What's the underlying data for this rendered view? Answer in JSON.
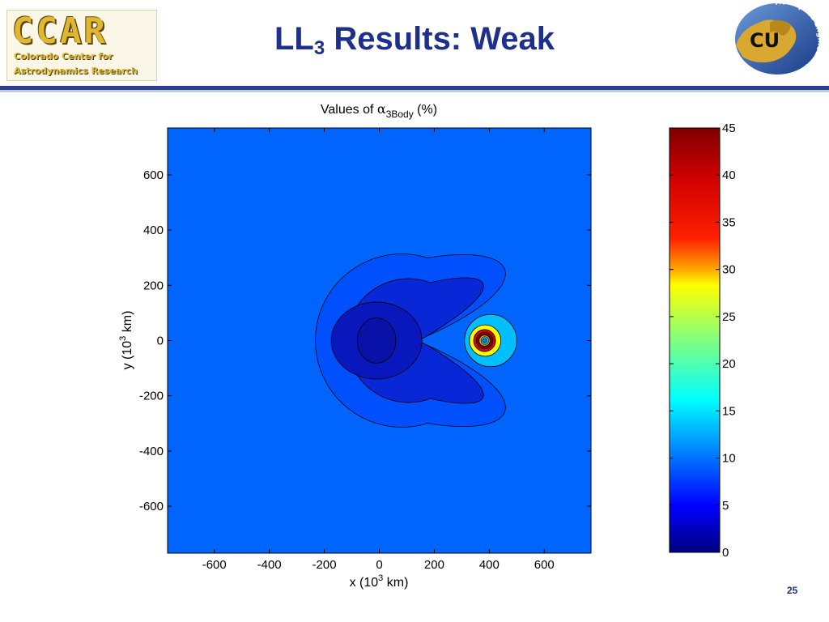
{
  "header": {
    "title_main": "LL",
    "title_sub": "3",
    "title_rest": " Results: Weak",
    "logo_left": {
      "acronym": "CCAR",
      "line1": "Colorado Center for",
      "line2": "Astrodynamics Research"
    },
    "logo_right": {
      "emblem": "CU",
      "arc_text": "Aerospace Engineering"
    }
  },
  "page_number": "25",
  "chart_data": {
    "type": "heatmap",
    "subtype": "filled-contour",
    "title_prefix": "Values of ",
    "title_symbol": "α",
    "title_subscript": "3Body",
    "title_suffix": " (%)",
    "xlabel_prefix": "x (10",
    "xlabel_sup": "3",
    "xlabel_suffix": " km)",
    "ylabel_prefix": "y (10",
    "ylabel_sup": "3",
    "ylabel_suffix": " km)",
    "xlim": [
      -770,
      770
    ],
    "ylim": [
      -770,
      770
    ],
    "xticks": [
      -600,
      -400,
      -200,
      0,
      200,
      400,
      600
    ],
    "yticks": [
      600,
      400,
      200,
      0,
      -200,
      -400,
      -600
    ],
    "colorbar": {
      "min": 0,
      "max": 45,
      "ticks": [
        45,
        40,
        35,
        30,
        25,
        20,
        15,
        10,
        5,
        0
      ]
    },
    "contours": [
      {
        "kind": "moon-lobe",
        "value": 5,
        "color": "#0050ff",
        "r": 315,
        "pinch_x": 175,
        "pinch_y": 300,
        "right_x": 560
      },
      {
        "kind": "moon-lobe",
        "value": 2,
        "color": "#0828d8",
        "r": 225,
        "pinch_x": 185,
        "pinch_y": 210,
        "right_x": 450
      },
      {
        "kind": "ellipse",
        "value": 1,
        "color": "#0818bc",
        "cx": -10,
        "cy": 0,
        "rx": 165,
        "ry": 140
      },
      {
        "kind": "ellipse",
        "value": 0.5,
        "color": "#0812a8",
        "cx": -10,
        "cy": 0,
        "rx": 70,
        "ry": 82
      },
      {
        "kind": "ellipse",
        "value": 9,
        "color": "#00bfff",
        "cx": 405,
        "cy": 0,
        "rx": 95,
        "ry": 95
      },
      {
        "kind": "ellipse",
        "value": 18,
        "color": "#ffff00",
        "cx": 385,
        "cy": 0,
        "rx": 57,
        "ry": 57
      },
      {
        "kind": "ellipse",
        "value": 33,
        "color": "#e00000",
        "cx": 383,
        "cy": 0,
        "rx": 40,
        "ry": 40
      },
      {
        "kind": "ellipse",
        "value": 42,
        "color": "#800000",
        "cx": 383,
        "cy": 0,
        "rx": 30,
        "ry": 30
      },
      {
        "kind": "ellipse",
        "value": 24,
        "color": "#ffa500",
        "cx": 383,
        "cy": 0,
        "rx": 20,
        "ry": 20
      },
      {
        "kind": "ellipse",
        "value": 12,
        "color": "#00ffff",
        "cx": 384,
        "cy": 0,
        "rx": 14,
        "ry": 14
      },
      {
        "kind": "ellipse",
        "value": 8,
        "color": "#0080ff",
        "cx": 384,
        "cy": 0,
        "rx": 8,
        "ry": 8
      }
    ],
    "background_value": 7,
    "background_color": "#0064ff"
  }
}
